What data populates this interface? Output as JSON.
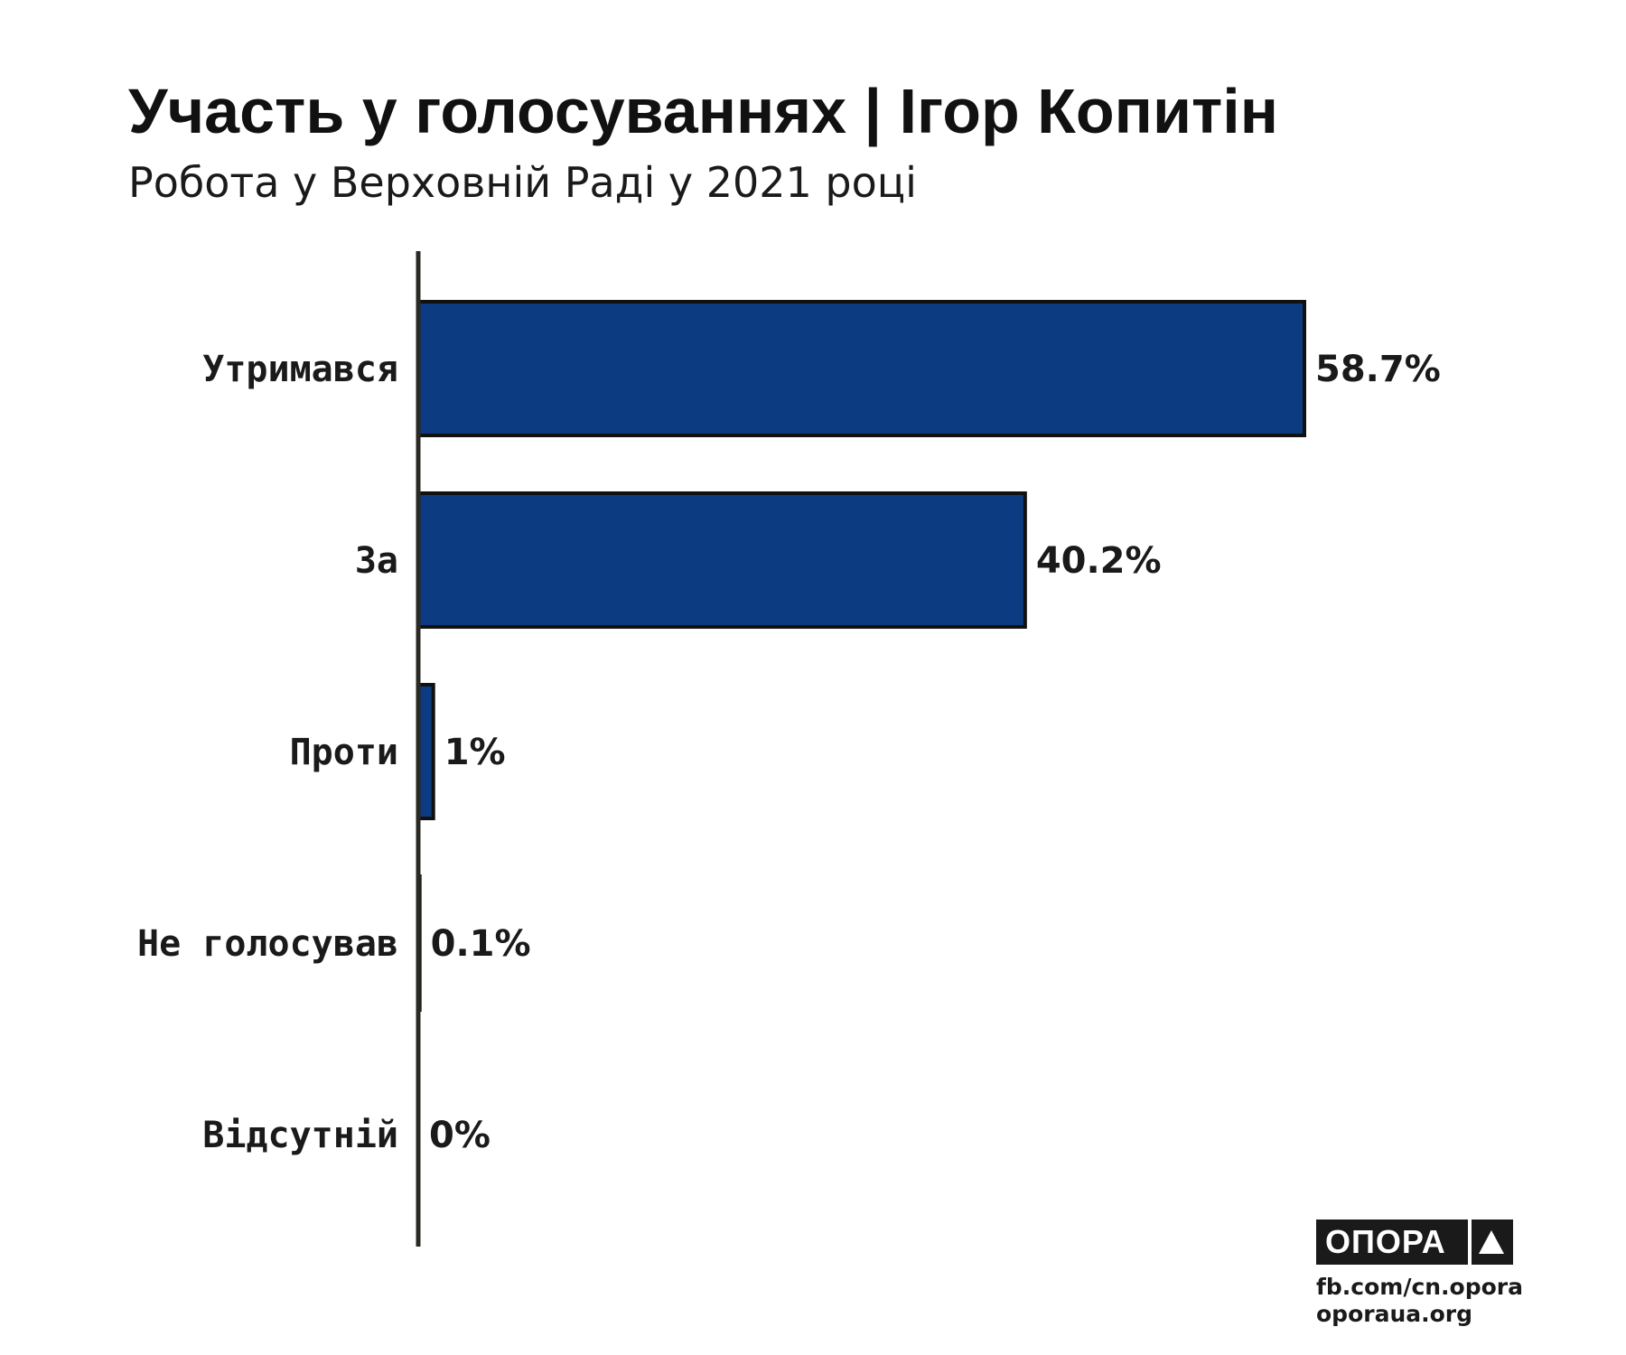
{
  "colors": {
    "bar_fill": "#0d3b82",
    "bar_stroke": "#111111",
    "axis": "#2a2a22"
  },
  "chart_data": {
    "type": "bar",
    "orientation": "horizontal",
    "title": "Участь у голосуваннях | Ігор Копитін",
    "subtitle": "Робота у Верховній Раді у 2021 році",
    "categories": [
      "Утримався",
      "За",
      "Проти",
      "Не голосував",
      "Відсутній"
    ],
    "values": [
      58.7,
      40.2,
      1,
      0.1,
      0
    ],
    "value_labels": [
      "58.7%",
      "40.2%",
      "1%",
      "0.1%",
      "0%"
    ],
    "xlim": [
      0,
      58.7
    ],
    "grid": false,
    "legend": "none"
  },
  "logo": {
    "name": "ОПОРА",
    "icon": "triangle-up-icon"
  },
  "footer": {
    "facebook": "fb.com/cn.opora",
    "site": "oporaua.org"
  }
}
